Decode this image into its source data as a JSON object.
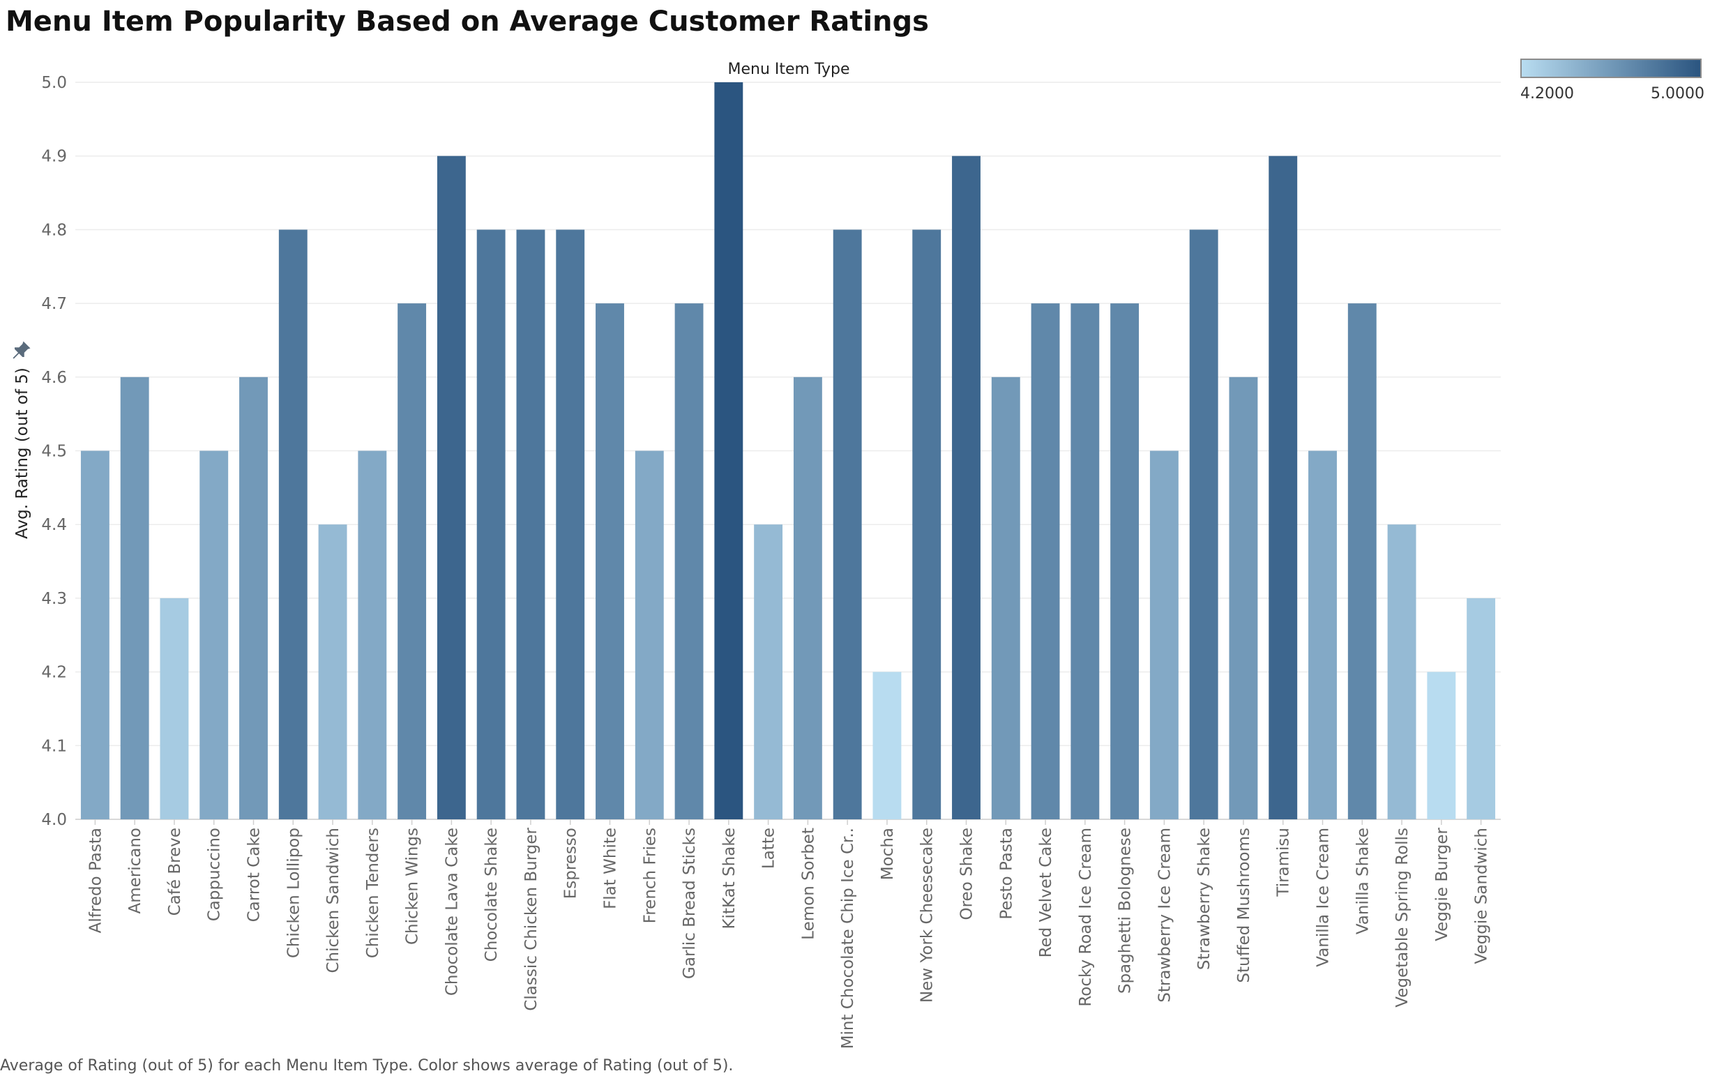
{
  "title": "Menu Item Popularity Based on Average Customer Ratings",
  "column_header": "Menu Item Type",
  "legend": {
    "min_label": "4.2000",
    "max_label": "5.0000",
    "color_low": "#b8dcf0",
    "color_high": "#2b5580"
  },
  "caption": "Average of Rating (out of 5) for each Menu Item Type.  Color shows average of Rating (out of 5).",
  "chart_data": {
    "type": "bar",
    "title": "Menu Item Popularity Based on Average Customer Ratings",
    "xlabel": "Menu Item Type",
    "ylabel": "Avg. Rating (out of 5)",
    "ylim": [
      4.0,
      5.0
    ],
    "yticks": [
      "4.0",
      "4.1",
      "4.2",
      "4.3",
      "4.4",
      "4.5",
      "4.6",
      "4.7",
      "4.8",
      "4.9",
      "5.0"
    ],
    "grid": true,
    "categories": [
      "Alfredo Pasta",
      "Americano",
      "Café Breve",
      "Cappuccino",
      "Carrot Cake",
      "Chicken Lollipop",
      "Chicken Sandwich",
      "Chicken Tenders",
      "Chicken Wings",
      "Chocolate Lava Cake",
      "Chocolate Shake",
      "Classic Chicken Burger",
      "Espresso",
      "Flat White",
      "French Fries",
      "Garlic Bread Sticks",
      "KitKat Shake",
      "Latte",
      "Lemon Sorbet",
      "Mint Chocolate Chip Ice Cr..",
      "Mocha",
      "New York Cheesecake",
      "Oreo Shake",
      "Pesto Pasta",
      "Red Velvet Cake",
      "Rocky Road Ice Cream",
      "Spaghetti Bolognese",
      "Strawberry Ice Cream",
      "Strawberry Shake",
      "Stuffed Mushrooms",
      "Tiramisu",
      "Vanilla Ice Cream",
      "Vanilla Shake",
      "Vegetable Spring Rolls",
      "Veggie Burger",
      "Veggie Sandwich"
    ],
    "values": [
      4.5,
      4.6,
      4.3,
      4.5,
      4.6,
      4.8,
      4.4,
      4.5,
      4.7,
      4.9,
      4.8,
      4.8,
      4.8,
      4.7,
      4.5,
      4.7,
      5.0,
      4.4,
      4.6,
      4.8,
      4.2,
      4.8,
      4.9,
      4.6,
      4.7,
      4.7,
      4.7,
      4.5,
      4.8,
      4.6,
      4.9,
      4.5,
      4.7,
      4.4,
      4.2,
      4.3
    ],
    "color_scale": {
      "min": 4.2,
      "max": 5.0,
      "low": "#b8dcf0",
      "high": "#2b5580"
    }
  }
}
